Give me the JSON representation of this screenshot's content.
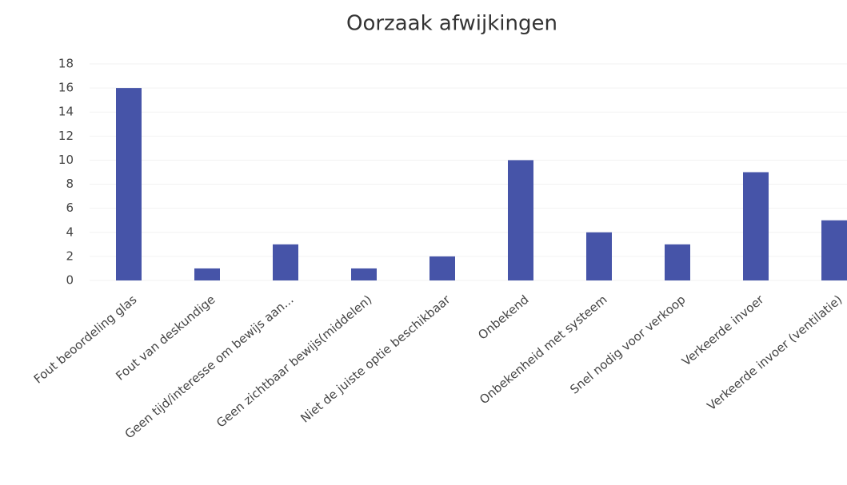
{
  "chart_data": {
    "type": "bar",
    "title": "Oorzaak afwijkingen",
    "categories": [
      "Fout beoordeling glas",
      "Fout van deskundige",
      "Geen tijd/interesse om bewijs aan...",
      "Geen zichtbaar bewijs(middelen)",
      "Niet de juiste optie beschikbaar",
      "Onbekend",
      "Onbekenheid met systeem",
      "Snel nodig voor verkoop",
      "Verkeerde invoer",
      "Verkeerde invoer (ventilatie)"
    ],
    "values": [
      16,
      1,
      3,
      1,
      2,
      10,
      4,
      3,
      9,
      5
    ],
    "color": "#4654a8",
    "ylim": [
      0,
      18
    ],
    "yticks": [
      0,
      2,
      4,
      6,
      8,
      10,
      12,
      14,
      16,
      18
    ],
    "grid": true
  }
}
